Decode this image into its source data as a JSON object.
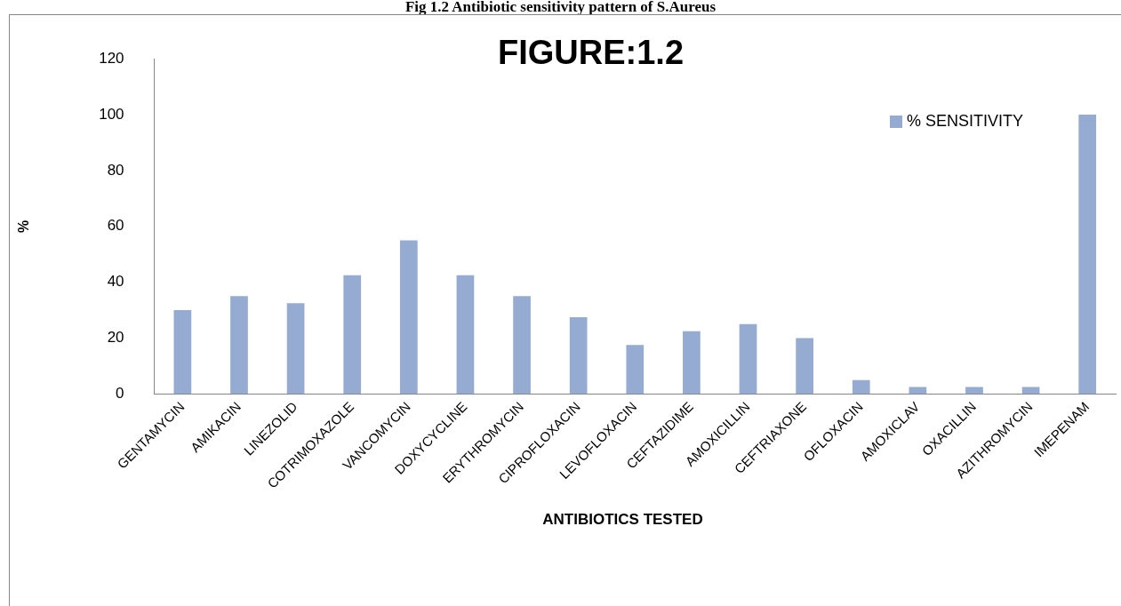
{
  "chart_data": {
    "type": "bar",
    "title": "Fig 1.2 Antibiotic sensitivity pattern of S.Aureus",
    "subtitle": "FIGURE:1.2",
    "xlabel": "ANTIBIOTICS TESTED",
    "ylabel": "%",
    "categories": [
      "GENTAMYCIN",
      "AMIKACIN",
      "LINEZOLID",
      "COTRIMOXAZOLE",
      "VANCOMYCIN",
      "DOXYCYCLINE",
      "ERYTHROMYCIN",
      "CIPROFLOXACIN",
      "LEVOFLOXACIN",
      "CEFTAZIDIME",
      "AMOXICILLIN",
      "CEFTRIAXONE",
      "OFLOXACIN",
      "AMOXICLAV",
      "OXACILLIN",
      "AZITHROMYCIN",
      "IMEPENAM"
    ],
    "series": [
      {
        "name": "% SENSITIVITY",
        "color": "#95abd2",
        "values": [
          30,
          35,
          32.5,
          42.5,
          55,
          42.5,
          35,
          27.5,
          17.5,
          22.5,
          25,
          20,
          5,
          2.5,
          2.5,
          2.5,
          100
        ]
      }
    ],
    "ylim": [
      0,
      120
    ],
    "yticks": [
      0,
      20,
      40,
      60,
      80,
      100,
      120
    ],
    "grid": false,
    "legend": "top right"
  }
}
